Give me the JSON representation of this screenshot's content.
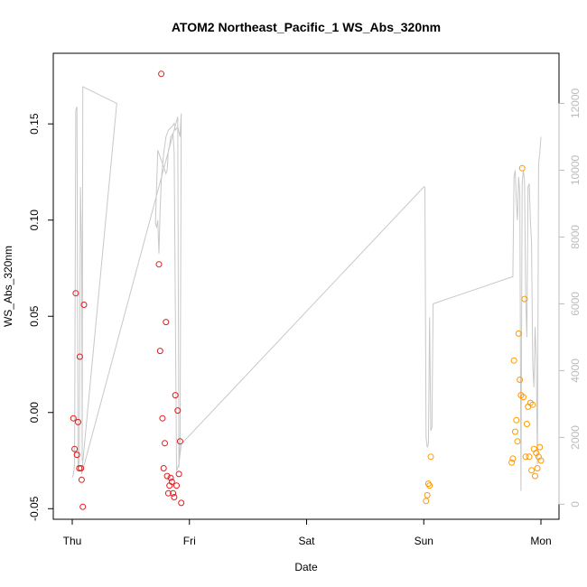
{
  "chart_data": {
    "type": "scatter",
    "title": "ATOM2 Northeast_Pacific_1 WS_Abs_320nm",
    "xlabel": "Date",
    "ylabel": "WS_Abs_320nm",
    "x_ticks": [
      "Thu",
      "Fri",
      "Sat",
      "Sun",
      "Mon"
    ],
    "x_range": [
      0,
      4
    ],
    "y_range": [
      -0.0555,
      0.1867
    ],
    "y_ticks": [
      -0.05,
      0.0,
      0.05,
      0.1,
      0.15
    ],
    "y_tick_labels": [
      "-0.05",
      "0.00",
      "0.05",
      "0.10",
      "0.15"
    ],
    "y2_range": [
      -450,
      13500
    ],
    "y2_ticks": [
      0,
      2000,
      4000,
      6000,
      8000,
      10000,
      12000
    ],
    "y2_tick_labels": [
      "0",
      "2000",
      "4000",
      "6000",
      "8000",
      "10000",
      "12000"
    ],
    "grid": false,
    "colors": {
      "red": "#e31a1c",
      "orange": "#ff9900",
      "line": "#c8c8c8"
    },
    "series": [
      {
        "color": "red",
        "points": [
          [
            0.01,
            -0.003
          ],
          [
            0.02,
            -0.019
          ],
          [
            0.03,
            0.062
          ],
          [
            0.04,
            -0.022
          ],
          [
            0.05,
            -0.005
          ],
          [
            0.06,
            -0.029
          ],
          [
            0.065,
            0.029
          ],
          [
            0.075,
            -0.029
          ],
          [
            0.08,
            -0.035
          ],
          [
            0.09,
            -0.049
          ],
          [
            0.1,
            0.056
          ],
          [
            0.74,
            0.077
          ],
          [
            0.75,
            0.032
          ],
          [
            0.76,
            0.176
          ],
          [
            0.77,
            -0.003
          ],
          [
            0.78,
            -0.029
          ],
          [
            0.79,
            -0.016
          ],
          [
            0.8,
            0.047
          ],
          [
            0.81,
            -0.033
          ],
          [
            0.82,
            -0.042
          ],
          [
            0.83,
            -0.038
          ],
          [
            0.84,
            -0.034
          ],
          [
            0.85,
            -0.036
          ],
          [
            0.86,
            -0.042
          ],
          [
            0.87,
            -0.044
          ],
          [
            0.88,
            0.009
          ],
          [
            0.89,
            -0.038
          ],
          [
            0.9,
            0.001
          ],
          [
            0.91,
            -0.032
          ],
          [
            0.92,
            -0.015
          ],
          [
            0.93,
            -0.047
          ]
        ]
      },
      {
        "color": "orange",
        "points": [
          [
            3.02,
            -0.046
          ],
          [
            3.03,
            -0.043
          ],
          [
            3.04,
            -0.037
          ],
          [
            3.05,
            -0.038
          ],
          [
            3.06,
            -0.023
          ],
          [
            3.75,
            -0.026
          ],
          [
            3.76,
            -0.024
          ],
          [
            3.77,
            0.027
          ],
          [
            3.78,
            -0.01
          ],
          [
            3.79,
            -0.004
          ],
          [
            3.8,
            -0.015
          ],
          [
            3.81,
            0.041
          ],
          [
            3.82,
            0.017
          ],
          [
            3.83,
            0.009
          ],
          [
            3.84,
            0.127
          ],
          [
            3.85,
            0.008
          ],
          [
            3.86,
            0.059
          ],
          [
            3.87,
            -0.023
          ],
          [
            3.88,
            -0.006
          ],
          [
            3.89,
            0.003
          ],
          [
            3.9,
            -0.023
          ],
          [
            3.91,
            0.005
          ],
          [
            3.92,
            -0.03
          ],
          [
            3.93,
            0.004
          ],
          [
            3.94,
            -0.019
          ],
          [
            3.95,
            -0.033
          ],
          [
            3.96,
            -0.021
          ],
          [
            3.97,
            -0.029
          ],
          [
            3.98,
            -0.023
          ],
          [
            3.99,
            -0.018
          ],
          [
            4.0,
            -0.025
          ]
        ]
      }
    ],
    "line_series": {
      "axis": "secondary",
      "points": [
        [
          0.0,
          800
        ],
        [
          0.01,
          900
        ],
        [
          0.02,
          1200
        ],
        [
          0.03,
          11800
        ],
        [
          0.04,
          11900
        ],
        [
          0.05,
          1100
        ],
        [
          0.06,
          1300
        ],
        [
          0.07,
          9500
        ],
        [
          0.08,
          7500
        ],
        [
          0.085,
          1300
        ],
        [
          0.09,
          12500
        ],
        [
          0.38,
          12000
        ],
        [
          0.08,
          900
        ],
        [
          0.9,
          11600
        ],
        [
          0.91,
          1100
        ],
        [
          0.92,
          1900
        ],
        [
          0.93,
          11700
        ],
        [
          0.92,
          11000
        ],
        [
          0.9,
          11300
        ],
        [
          0.88,
          11200
        ],
        [
          0.87,
          11400
        ],
        [
          0.85,
          11300
        ],
        [
          0.82,
          11200
        ],
        [
          0.8,
          11000
        ],
        [
          0.78,
          10500
        ],
        [
          0.76,
          9700
        ],
        [
          0.75,
          8800
        ],
        [
          0.74,
          7500
        ],
        [
          0.73,
          8500
        ],
        [
          0.72,
          8300
        ],
        [
          0.71,
          8400
        ],
        [
          0.72,
          9500
        ],
        [
          0.73,
          10600
        ],
        [
          0.8,
          9900
        ],
        [
          0.81,
          10000
        ],
        [
          0.82,
          10600
        ],
        [
          0.83,
          10700
        ],
        [
          0.84,
          11000
        ],
        [
          0.86,
          11100
        ],
        [
          0.87,
          10500
        ],
        [
          0.89,
          1000
        ],
        [
          0.91,
          1200
        ],
        [
          0.93,
          1800
        ],
        [
          3.0,
          9500
        ],
        [
          3.01,
          9500
        ],
        [
          3.02,
          2000
        ],
        [
          3.03,
          1700
        ],
        [
          3.04,
          1800
        ],
        [
          3.05,
          5600
        ],
        [
          3.06,
          2200
        ],
        [
          3.07,
          2300
        ],
        [
          3.08,
          6000
        ],
        [
          3.75,
          6800
        ],
        [
          3.76,
          6800
        ],
        [
          3.77,
          9800
        ],
        [
          3.78,
          10000
        ],
        [
          3.79,
          9000
        ],
        [
          3.8,
          8500
        ],
        [
          3.81,
          9800
        ],
        [
          3.82,
          9300
        ],
        [
          3.83,
          400
        ],
        [
          3.84,
          9600
        ],
        [
          3.85,
          10000
        ],
        [
          3.86,
          9700
        ],
        [
          3.87,
          6200
        ],
        [
          3.88,
          5000
        ],
        [
          3.89,
          9500
        ],
        [
          3.9,
          9600
        ],
        [
          3.91,
          8500
        ],
        [
          3.92,
          7800
        ],
        [
          3.93,
          4200
        ],
        [
          3.94,
          3500
        ],
        [
          3.95,
          5300
        ],
        [
          3.96,
          4400
        ],
        [
          3.97,
          1200
        ],
        [
          3.98,
          10200
        ],
        [
          3.99,
          10500
        ],
        [
          4.0,
          11000
        ]
      ]
    }
  }
}
